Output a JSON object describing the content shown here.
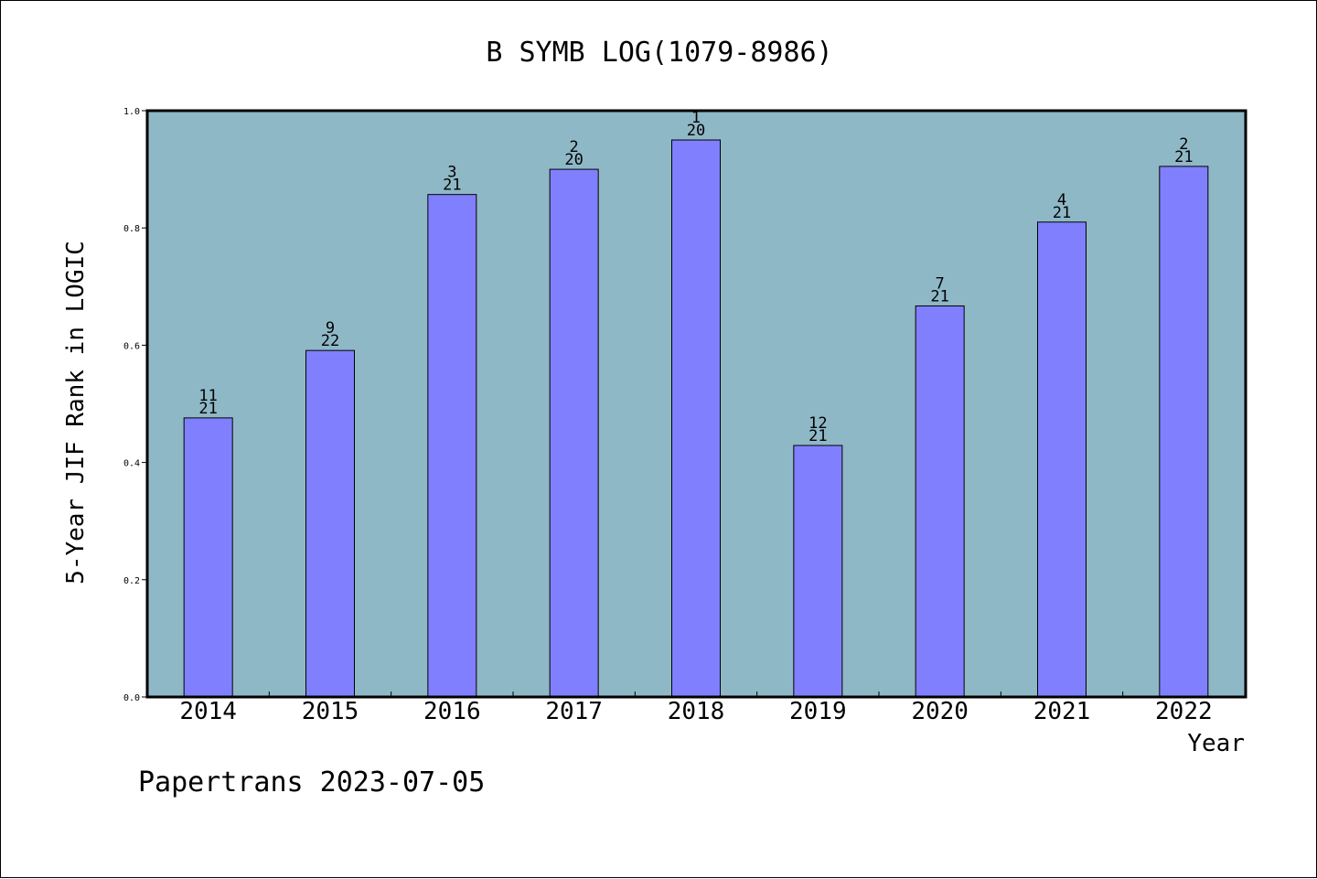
{
  "chart_data": {
    "type": "bar",
    "title": "B SYMB LOG(1079-8986)",
    "xlabel": "Year",
    "ylabel": "5-Year JIF Rank in LOGIC",
    "ylim": [
      0,
      1.0
    ],
    "yticks": [
      "0.0",
      "0.2",
      "0.4",
      "0.6",
      "0.8",
      "1.0"
    ],
    "ytick_values": [
      0,
      0.2,
      0.4,
      0.6,
      0.8,
      1.0
    ],
    "categories": [
      "2014",
      "2015",
      "2016",
      "2017",
      "2018",
      "2019",
      "2020",
      "2021",
      "2022"
    ],
    "values": [
      0.476,
      0.591,
      0.857,
      0.9,
      0.95,
      0.429,
      0.667,
      0.81,
      0.905
    ],
    "ranks": [
      "11",
      "9",
      "3",
      "2",
      "1",
      "12",
      "7",
      "4",
      "2"
    ],
    "totals": [
      "21",
      "22",
      "21",
      "20",
      "20",
      "21",
      "21",
      "21",
      "21"
    ],
    "grid": false,
    "legend": "none",
    "colors": {
      "plot_background": "#8fb8c7",
      "bar_fill": "#8080ff",
      "bar_edge": "#000000"
    }
  },
  "footer": {
    "credit": "Papertrans 2023-07-05"
  }
}
